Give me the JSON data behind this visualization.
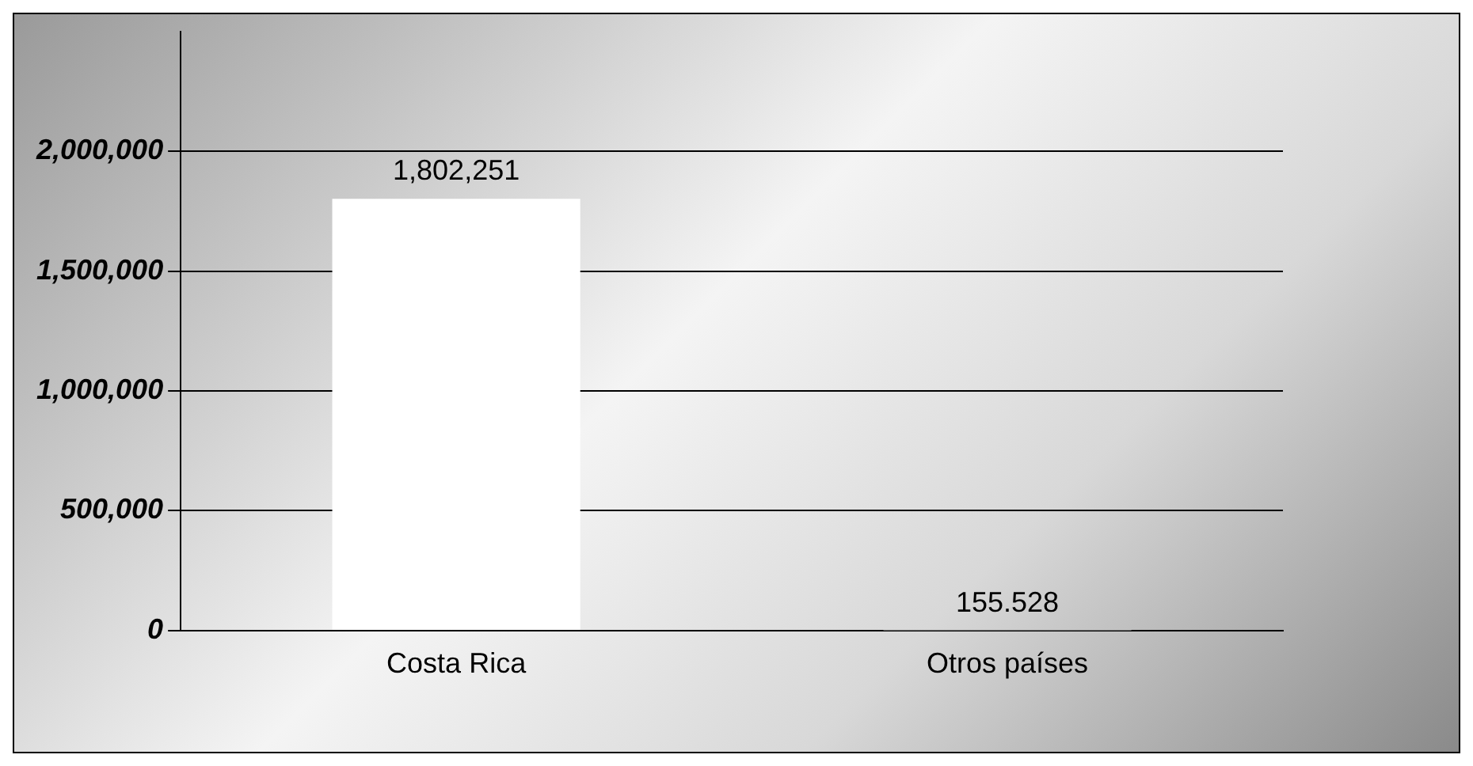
{
  "chart_data": {
    "type": "bar",
    "categories": [
      "Costa Rica",
      "Otros países"
    ],
    "values": [
      1802251,
      155.528
    ],
    "colors": [
      "#ffffff",
      "#c0c0c0"
    ],
    "value_labels": [
      "1,802,251",
      "155.528"
    ],
    "ylim": [
      0,
      2500000
    ],
    "yticks": [
      {
        "value": 0,
        "label": "0"
      },
      {
        "value": 500000,
        "label": "500,000"
      },
      {
        "value": 1000000,
        "label": "1,000,000"
      },
      {
        "value": 1500000,
        "label": "1,500,000"
      },
      {
        "value": 2000000,
        "label": "2,000,000"
      }
    ],
    "grid": "y"
  }
}
